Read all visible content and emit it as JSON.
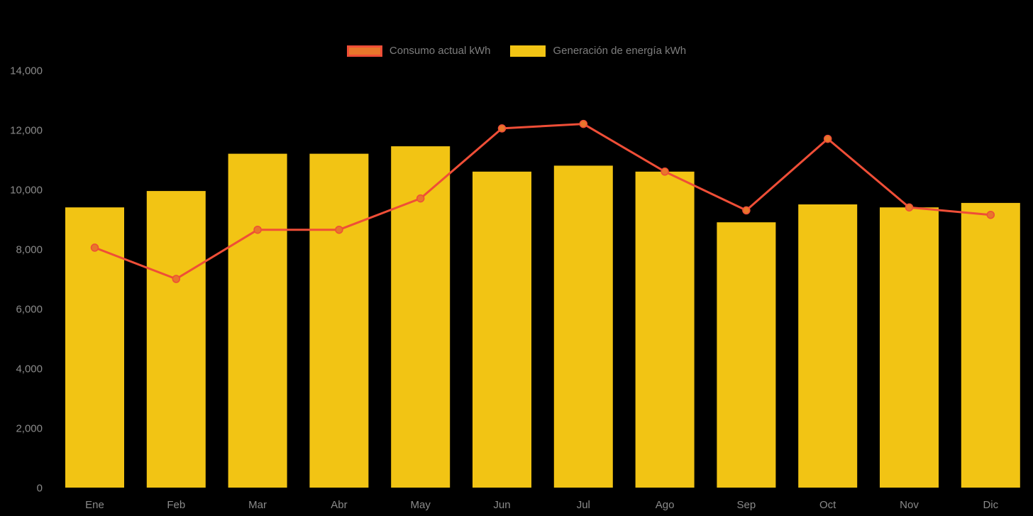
{
  "colors": {
    "background": "#000000",
    "bar": "#F2C414",
    "line": "#EF4E37",
    "point": "#E8762B",
    "axis_text": "#8A8A8A",
    "legend_text": "#7E7E7E"
  },
  "chart_data": {
    "type": "bar+line",
    "title": "",
    "xlabel": "",
    "ylabel": "",
    "categories": [
      "Ene",
      "Feb",
      "Mar",
      "Abr",
      "May",
      "Jun",
      "Jul",
      "Ago",
      "Sep",
      "Oct",
      "Nov",
      "Dic"
    ],
    "series": [
      {
        "name": "Consumo actual kWh",
        "type": "line",
        "color": "#EF4E37",
        "values": [
          8050,
          7000,
          8650,
          8650,
          9700,
          12050,
          12200,
          10600,
          9300,
          11700,
          9400,
          9150
        ]
      },
      {
        "name": "Generación de energía kWh",
        "type": "bar",
        "color": "#F2C414",
        "values": [
          9400,
          9950,
          11200,
          11200,
          11450,
          10600,
          10800,
          10600,
          8900,
          9500,
          9400,
          9550
        ]
      }
    ],
    "ylim": [
      0,
      14000
    ],
    "yticks": [
      0,
      2000,
      4000,
      6000,
      8000,
      10000,
      12000,
      14000
    ],
    "ytick_labels": [
      "0",
      "2,000",
      "4,000",
      "6,000",
      "8,000",
      "10,000",
      "12,000",
      "14,000"
    ],
    "grid": false,
    "legend_position": "top"
  }
}
